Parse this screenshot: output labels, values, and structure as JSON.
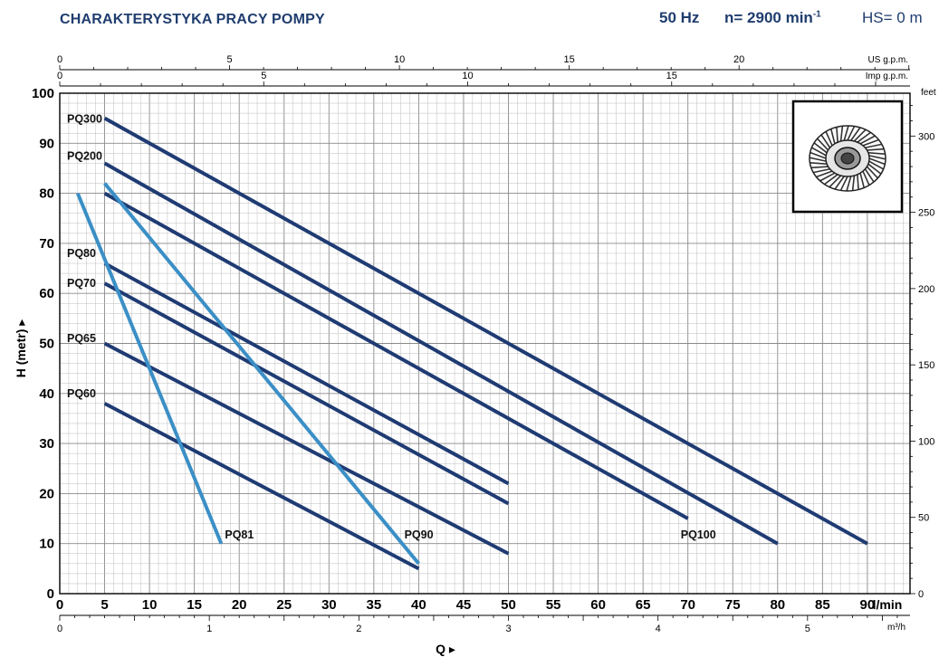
{
  "header": {
    "title": "CHARAKTERYSTYKA PRACY POMPY",
    "frequency": "50 Hz",
    "speed_label": "n= 2900 min",
    "speed_exp": "-1",
    "hs": "HS= 0 m"
  },
  "image_icon": "pump-impeller-icon",
  "colors": {
    "dark_series": "#1f3b73",
    "light_series": "#3b8fc6",
    "grid_minor": "#bdbdbd",
    "grid_major": "#8a8a8a",
    "header": "#1f3d6e"
  },
  "chart_data": {
    "type": "line",
    "title": "CHARAKTERYSTYKA PRACY POMPY",
    "xlabel": "Q",
    "ylabel": "H (metr)",
    "x_unit": "l/min",
    "xlim": [
      0,
      95
    ],
    "ylim": [
      0,
      100
    ],
    "x_ticks": [
      0,
      5,
      10,
      15,
      20,
      25,
      30,
      35,
      40,
      45,
      50,
      55,
      60,
      65,
      70,
      75,
      80,
      85,
      90
    ],
    "y_ticks": [
      0,
      10,
      20,
      30,
      40,
      50,
      60,
      70,
      80,
      90,
      100
    ],
    "grid": true,
    "secondary_axes": {
      "us_gpm": {
        "label": "US g.p.m.",
        "ticks": [
          0,
          5,
          10,
          15,
          20
        ]
      },
      "imp_gpm": {
        "label": "Imp g.p.m.",
        "ticks": [
          0,
          5,
          10,
          15
        ]
      },
      "feet": {
        "label": "feet",
        "ticks": [
          0,
          50,
          100,
          150,
          200,
          250,
          300
        ]
      },
      "m3h": {
        "label": "m³/h",
        "ticks": [
          0,
          1,
          2,
          3,
          4,
          5
        ]
      }
    },
    "series": [
      {
        "name": "PQ300",
        "style": "dark",
        "x": [
          5,
          90
        ],
        "y": [
          95,
          10
        ]
      },
      {
        "name": "PQ200",
        "style": "dark",
        "x": [
          5,
          80
        ],
        "y": [
          86,
          10
        ]
      },
      {
        "name": "PQ100",
        "style": "dark",
        "x": [
          5,
          70
        ],
        "y": [
          80,
          15
        ]
      },
      {
        "name": "PQ80",
        "style": "dark",
        "x": [
          5,
          50
        ],
        "y": [
          66,
          22
        ]
      },
      {
        "name": "PQ70",
        "style": "dark",
        "x": [
          5,
          50
        ],
        "y": [
          62,
          18
        ]
      },
      {
        "name": "PQ65",
        "style": "dark",
        "x": [
          5,
          50
        ],
        "y": [
          50,
          8
        ]
      },
      {
        "name": "PQ60",
        "style": "dark",
        "x": [
          5,
          40
        ],
        "y": [
          38,
          5
        ]
      },
      {
        "name": "PQ81",
        "style": "light",
        "x": [
          2,
          18
        ],
        "y": [
          80,
          10
        ]
      },
      {
        "name": "PQ90",
        "style": "light",
        "x": [
          5,
          40
        ],
        "y": [
          82,
          6
        ]
      }
    ],
    "series_labels": [
      {
        "text": "PQ300",
        "pos": "left"
      },
      {
        "text": "PQ200",
        "pos": "left"
      },
      {
        "text": "PQ80",
        "pos": "left"
      },
      {
        "text": "PQ70",
        "pos": "left"
      },
      {
        "text": "PQ65",
        "pos": "left"
      },
      {
        "text": "PQ60",
        "pos": "left"
      },
      {
        "text": "PQ81",
        "pos": "end"
      },
      {
        "text": "PQ90",
        "pos": "end"
      },
      {
        "text": "PQ100",
        "pos": "end"
      }
    ]
  }
}
